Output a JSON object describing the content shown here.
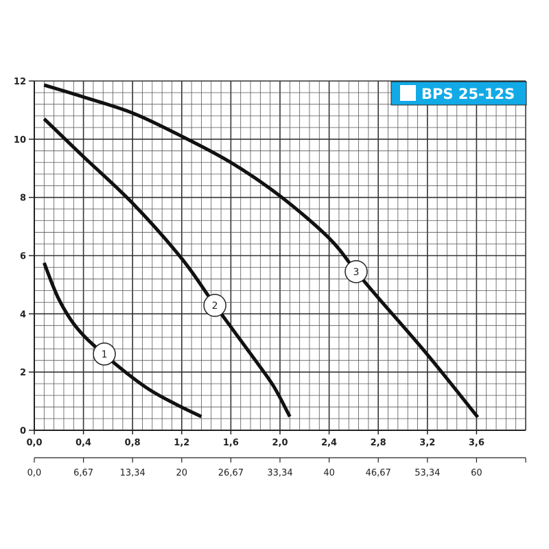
{
  "chart_data": {
    "type": "line",
    "title": "BPS 25-12S",
    "title_color": "#12aae6",
    "xlim": [
      0,
      4.0
    ],
    "ylim": [
      0,
      12
    ],
    "grid": true,
    "x_ticks": [
      "0,0",
      "0,4",
      "0,8",
      "1,2",
      "1,6",
      "2,0",
      "2,4",
      "2,8",
      "3,2",
      "3,6"
    ],
    "x_tick_values": [
      0,
      0.4,
      0.8,
      1.2,
      1.6,
      2.0,
      2.4,
      2.8,
      3.2,
      3.6
    ],
    "x2_ticks": [
      "0,0",
      "6,67",
      "13,34",
      "20",
      "26,67",
      "33,34",
      "40",
      "46,67",
      "53,34",
      "60"
    ],
    "y_ticks": [
      "0",
      "2",
      "4",
      "6",
      "8",
      "10",
      "12"
    ],
    "y_tick_values": [
      0,
      2,
      4,
      6,
      8,
      10,
      12
    ],
    "series": [
      {
        "name": "1",
        "x": [
          0.08,
          0.2,
          0.35,
          0.57,
          0.9,
          1.15,
          1.36
        ],
        "y": [
          5.75,
          4.5,
          3.5,
          2.6,
          1.5,
          0.9,
          0.47
        ],
        "label_at": [
          0.57,
          2.62
        ]
      },
      {
        "name": "2",
        "x": [
          0.08,
          0.4,
          0.8,
          1.2,
          1.47,
          1.8,
          1.95,
          2.08
        ],
        "y": [
          10.7,
          9.4,
          7.8,
          5.9,
          4.3,
          2.4,
          1.5,
          0.47
        ],
        "label_at": [
          1.47,
          4.29
        ]
      },
      {
        "name": "3",
        "x": [
          0.08,
          0.4,
          0.8,
          1.2,
          1.6,
          2.0,
          2.4,
          2.62,
          2.8,
          3.2,
          3.61
        ],
        "y": [
          11.86,
          11.45,
          10.9,
          10.1,
          9.2,
          8.05,
          6.6,
          5.45,
          4.55,
          2.6,
          0.45
        ],
        "label_at": [
          2.62,
          5.45
        ]
      }
    ]
  }
}
